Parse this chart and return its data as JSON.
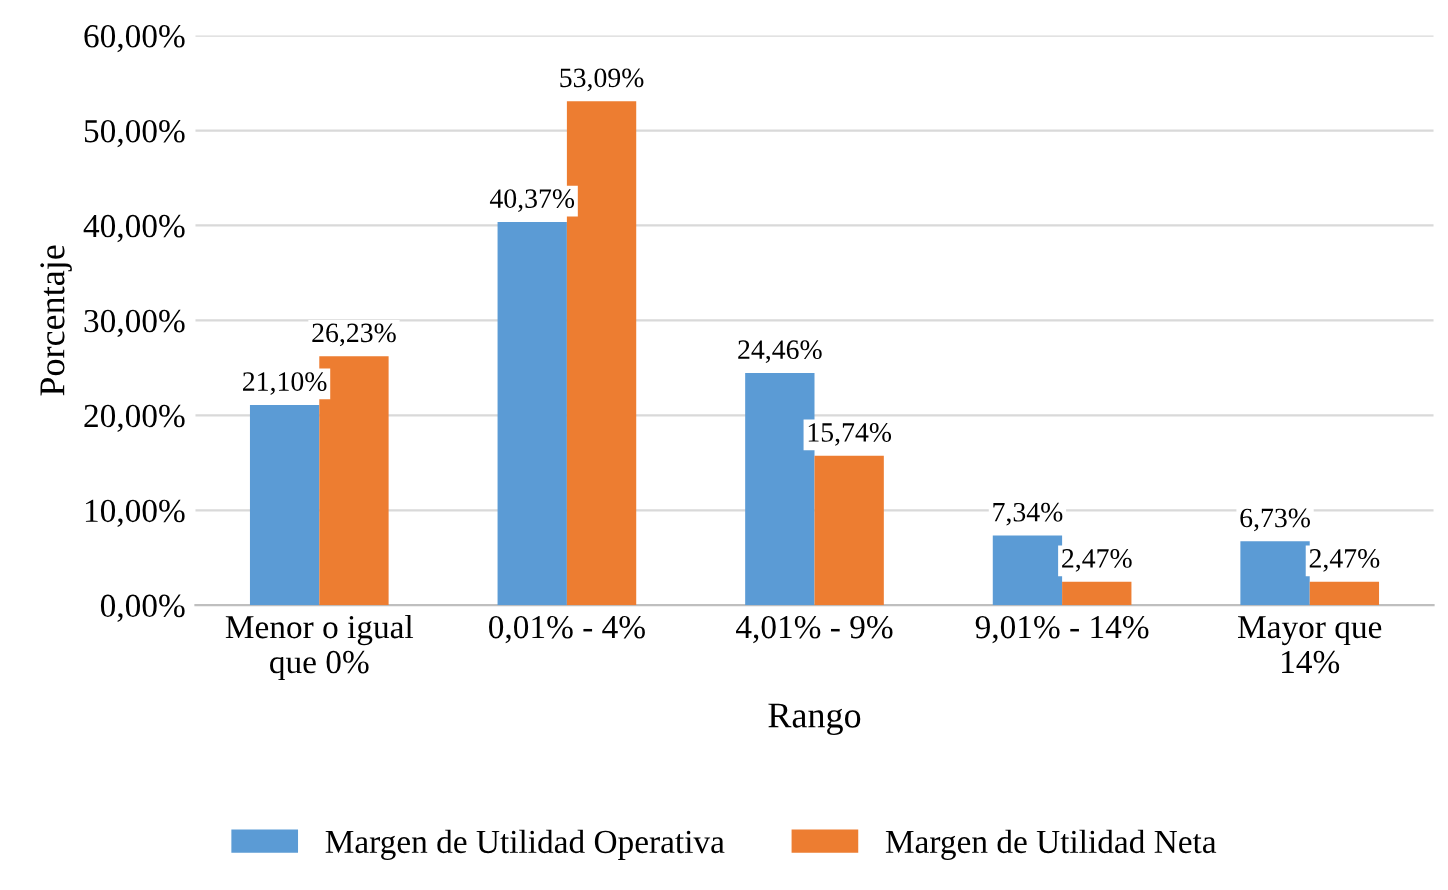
{
  "chart_data": {
    "type": "bar",
    "xlabel": "Rango",
    "ylabel": "Porcentaje",
    "categories": [
      "Menor o igual\nque 0%",
      "0,01% - 4%",
      "4,01% - 9%",
      "9,01% - 14%",
      "Mayor que\n14%"
    ],
    "series": [
      {
        "name": "Margen de Utilidad Operativa",
        "color": "#5b9bd5",
        "values": [
          21.1,
          40.37,
          24.46,
          7.34,
          6.73
        ],
        "value_labels": [
          "21,10%",
          "40,37%",
          "24,46%",
          "7,34%",
          "6,73%"
        ]
      },
      {
        "name": "Margen de Utilidad Neta",
        "color": "#ed7d31",
        "values": [
          26.23,
          53.09,
          15.74,
          2.47,
          2.47
        ],
        "value_labels": [
          "26,23%",
          "53,09%",
          "15,74%",
          "2,47%",
          "2,47%"
        ]
      }
    ],
    "ylim": [
      0,
      60
    ],
    "yticks": [
      {
        "value": 0,
        "label": "0,00%"
      },
      {
        "value": 10,
        "label": "10,00%"
      },
      {
        "value": 20,
        "label": "20,00%"
      },
      {
        "value": 30,
        "label": "30,00%"
      },
      {
        "value": 40,
        "label": "40,00%"
      },
      {
        "value": 50,
        "label": "50,00%"
      },
      {
        "value": 60,
        "label": "60,00%"
      }
    ],
    "grid": "y",
    "legend": "bottom"
  }
}
